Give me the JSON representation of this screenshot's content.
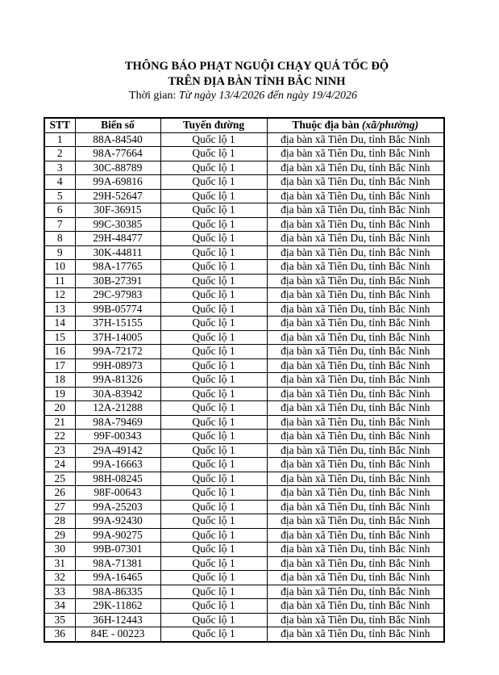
{
  "document": {
    "title_line1": "THÔNG BÁO PHẠT NGUỘI CHẠY QUÁ TỐC ĐỘ",
    "title_line2": "TRÊN ĐỊA BÀN TỈNH BẮC NINH",
    "time_label": "Thời gian: ",
    "time_value": "Từ ngày 13/4/2026 đến ngày 19/4/2026"
  },
  "table": {
    "headers": {
      "stt": "STT",
      "plate": "Biển số",
      "route": "Tuyến đường",
      "area": "Thuộc địa bàn ",
      "area_note": "(xã/phường)"
    },
    "route_value": "Quốc lộ 1",
    "area_value": "địa bàn xã Tiên Du, tỉnh Bắc Ninh",
    "rows": [
      {
        "stt": "1",
        "plate": "88A-84540"
      },
      {
        "stt": "2",
        "plate": "98A-77664"
      },
      {
        "stt": "3",
        "plate": "30C-88789"
      },
      {
        "stt": "4",
        "plate": "99A-69816"
      },
      {
        "stt": "5",
        "plate": "29H-52647"
      },
      {
        "stt": "6",
        "plate": "30F-36915"
      },
      {
        "stt": "7",
        "plate": "99C-30385"
      },
      {
        "stt": "8",
        "plate": "29H-48477"
      },
      {
        "stt": "9",
        "plate": "30K-44811"
      },
      {
        "stt": "10",
        "plate": "98A-17765"
      },
      {
        "stt": "11",
        "plate": "30B-27391"
      },
      {
        "stt": "12",
        "plate": "29C-97983"
      },
      {
        "stt": "13",
        "plate": "99B-05774"
      },
      {
        "stt": "14",
        "plate": "37H-15155"
      },
      {
        "stt": "15",
        "plate": "37H-14005"
      },
      {
        "stt": "16",
        "plate": "99A-72172"
      },
      {
        "stt": "17",
        "plate": "99H-08973"
      },
      {
        "stt": "18",
        "plate": "99A-81326"
      },
      {
        "stt": "19",
        "plate": "30A-83942"
      },
      {
        "stt": "20",
        "plate": "12A-21288"
      },
      {
        "stt": "21",
        "plate": "98A-79469"
      },
      {
        "stt": "22",
        "plate": "99F-00343"
      },
      {
        "stt": "23",
        "plate": "29A-49142"
      },
      {
        "stt": "24",
        "plate": "99A-16663"
      },
      {
        "stt": "25",
        "plate": "98H-08245"
      },
      {
        "stt": "26",
        "plate": "98F-00643"
      },
      {
        "stt": "27",
        "plate": "99A-25203"
      },
      {
        "stt": "28",
        "plate": "99A-92430"
      },
      {
        "stt": "29",
        "plate": "99A-90275"
      },
      {
        "stt": "30",
        "plate": "99B-07301"
      },
      {
        "stt": "31",
        "plate": "98A-71381"
      },
      {
        "stt": "32",
        "plate": "99A-16465"
      },
      {
        "stt": "33",
        "plate": "98A-86335"
      },
      {
        "stt": "34",
        "plate": "29K-11862"
      },
      {
        "stt": "35",
        "plate": "36H-12443"
      },
      {
        "stt": "36",
        "plate": "84E - 00223"
      }
    ]
  }
}
